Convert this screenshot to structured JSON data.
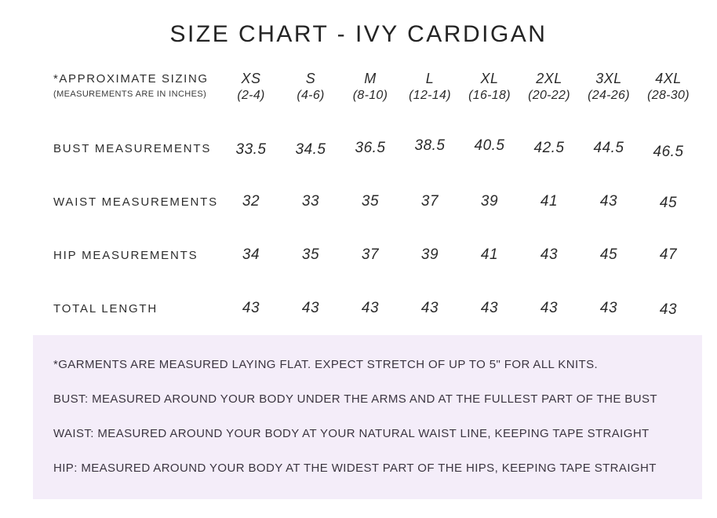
{
  "colors": {
    "background": "#ffffff",
    "table_text": "#2e2e2e",
    "notes_background": "#f4edf9",
    "notes_text": "#3b3540"
  },
  "chart_data": {
    "type": "table",
    "title": "SIZE CHART - IVY CARDIGAN",
    "units": "inches",
    "corner": {
      "label": "*APPROXIMATE SIZING",
      "sublabel": "(MEASUREMENTS ARE IN INCHES)"
    },
    "columns": [
      {
        "size": "XS",
        "range": "(2-4)"
      },
      {
        "size": "S",
        "range": "(4-6)"
      },
      {
        "size": "M",
        "range": "(8-10)"
      },
      {
        "size": "L",
        "range": "(12-14)"
      },
      {
        "size": "XL",
        "range": "(16-18)"
      },
      {
        "size": "2XL",
        "range": "(20-22)"
      },
      {
        "size": "3XL",
        "range": "(24-26)"
      },
      {
        "size": "4XL",
        "range": "(28-30)"
      }
    ],
    "rows": [
      {
        "label": "BUST MEASUREMENTS",
        "values": [
          "33.5",
          "34.5",
          "36.5",
          "38.5",
          "40.5",
          "42.5",
          "44.5",
          "46.5"
        ]
      },
      {
        "label": "WAIST MEASUREMENTS",
        "values": [
          "32",
          "33",
          "35",
          "37",
          "39",
          "41",
          "43",
          "45"
        ]
      },
      {
        "label": "HIP MEASUREMENTS",
        "values": [
          "34",
          "35",
          "37",
          "39",
          "41",
          "43",
          "45",
          "47"
        ]
      },
      {
        "label": "TOTAL LENGTH",
        "values": [
          "43",
          "43",
          "43",
          "43",
          "43",
          "43",
          "43",
          "43"
        ]
      }
    ]
  },
  "notes": {
    "lines": [
      "*GARMENTS ARE MEASURED LAYING FLAT. EXPECT STRETCH OF UP TO 5\" FOR ALL KNITS.",
      "BUST: MEASURED AROUND YOUR BODY UNDER THE ARMS AND AT THE FULLEST PART OF THE BUST",
      "WAIST: MEASURED AROUND YOUR BODY AT YOUR NATURAL WAIST LINE, KEEPING TAPE STRAIGHT",
      "HIP: MEASURED AROUND YOUR BODY AT THE WIDEST PART OF THE HIPS, KEEPING TAPE STRAIGHT"
    ]
  }
}
